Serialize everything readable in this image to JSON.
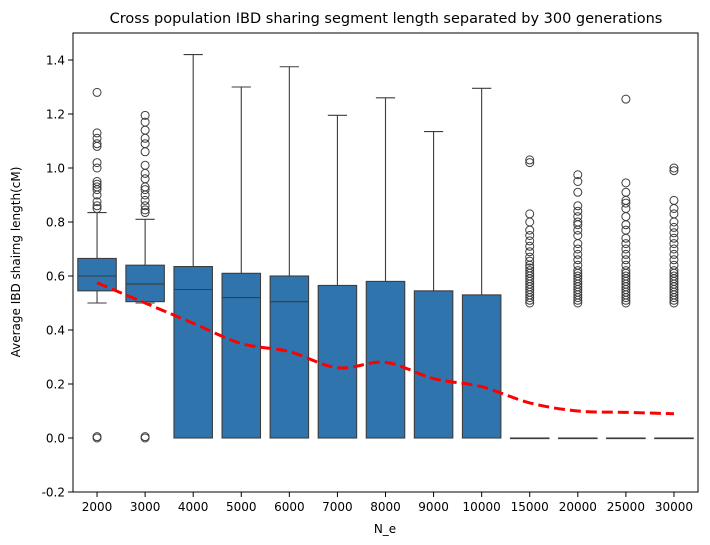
{
  "chart_data": {
    "type": "box",
    "title": "Cross population IBD sharing segment length separated by 300 generations",
    "xlabel": "N_e",
    "ylabel": "Average IBD shairng length(cM)",
    "ylim": [
      -0.2,
      1.5
    ],
    "yticks": [
      -0.2,
      0.0,
      0.2,
      0.4,
      0.6,
      0.8,
      1.0,
      1.2,
      1.4
    ],
    "grid": false,
    "colors": {
      "box": "#2f74ad",
      "edge": "#3d3d3d",
      "trend": "#ff0000"
    },
    "categories": [
      "2000",
      "3000",
      "4000",
      "5000",
      "6000",
      "7000",
      "8000",
      "9000",
      "10000",
      "15000",
      "20000",
      "25000",
      "30000"
    ],
    "boxes": [
      {
        "whislo": 0.5,
        "q1": 0.545,
        "med": 0.6,
        "q3": 0.665,
        "whishi": 0.835,
        "fliers": [
          0.0,
          0.005,
          0.85,
          0.86,
          0.875,
          0.9,
          0.92,
          0.93,
          0.94,
          0.95,
          1.0,
          1.02,
          1.08,
          1.09,
          1.11,
          1.13,
          1.28
        ]
      },
      {
        "whislo": 0.5,
        "q1": 0.505,
        "med": 0.57,
        "q3": 0.64,
        "whishi": 0.81,
        "fliers": [
          0.0,
          0.005,
          0.835,
          0.845,
          0.86,
          0.88,
          0.9,
          0.92,
          0.93,
          0.96,
          0.98,
          1.01,
          1.06,
          1.09,
          1.11,
          1.14,
          1.17,
          1.195
        ]
      },
      {
        "whislo": 0.0,
        "q1": 0.0,
        "med": 0.55,
        "q3": 0.635,
        "whishi": 1.42,
        "fliers": []
      },
      {
        "whislo": 0.0,
        "q1": 0.0,
        "med": 0.52,
        "q3": 0.61,
        "whishi": 1.3,
        "fliers": []
      },
      {
        "whislo": 0.0,
        "q1": 0.0,
        "med": 0.505,
        "q3": 0.6,
        "whishi": 1.375,
        "fliers": []
      },
      {
        "whislo": 0.0,
        "q1": 0.0,
        "med": 0.0,
        "q3": 0.565,
        "whishi": 1.195,
        "fliers": []
      },
      {
        "whislo": 0.0,
        "q1": 0.0,
        "med": 0.0,
        "q3": 0.58,
        "whishi": 1.26,
        "fliers": []
      },
      {
        "whislo": 0.0,
        "q1": 0.0,
        "med": 0.0,
        "q3": 0.545,
        "whishi": 1.135,
        "fliers": []
      },
      {
        "whislo": 0.0,
        "q1": 0.0,
        "med": 0.0,
        "q3": 0.53,
        "whishi": 1.295,
        "fliers": []
      },
      {
        "whislo": 0.0,
        "q1": 0.0,
        "med": 0.0,
        "q3": 0.0,
        "whishi": 0.0,
        "fliers": [
          0.5,
          0.51,
          0.52,
          0.53,
          0.54,
          0.55,
          0.56,
          0.57,
          0.58,
          0.59,
          0.6,
          0.61,
          0.62,
          0.63,
          0.64,
          0.655,
          0.67,
          0.69,
          0.71,
          0.73,
          0.75,
          0.77,
          0.8,
          0.83,
          1.02,
          1.03
        ]
      },
      {
        "whislo": 0.0,
        "q1": 0.0,
        "med": 0.0,
        "q3": 0.0,
        "whishi": 0.0,
        "fliers": [
          0.5,
          0.51,
          0.52,
          0.53,
          0.54,
          0.55,
          0.56,
          0.57,
          0.58,
          0.59,
          0.6,
          0.61,
          0.62,
          0.64,
          0.66,
          0.68,
          0.7,
          0.72,
          0.75,
          0.77,
          0.79,
          0.8,
          0.82,
          0.84,
          0.86,
          0.91,
          0.95,
          0.975
        ]
      },
      {
        "whislo": 0.0,
        "q1": 0.0,
        "med": 0.0,
        "q3": 0.0,
        "whishi": 0.0,
        "fliers": [
          0.5,
          0.51,
          0.52,
          0.53,
          0.54,
          0.55,
          0.56,
          0.57,
          0.58,
          0.59,
          0.6,
          0.61,
          0.62,
          0.64,
          0.66,
          0.68,
          0.7,
          0.72,
          0.74,
          0.77,
          0.79,
          0.82,
          0.85,
          0.87,
          0.88,
          0.91,
          0.945,
          1.255
        ]
      },
      {
        "whislo": 0.0,
        "q1": 0.0,
        "med": 0.0,
        "q3": 0.0,
        "whishi": 0.0,
        "fliers": [
          0.5,
          0.51,
          0.52,
          0.53,
          0.54,
          0.55,
          0.56,
          0.57,
          0.58,
          0.59,
          0.6,
          0.61,
          0.62,
          0.64,
          0.66,
          0.68,
          0.7,
          0.72,
          0.74,
          0.76,
          0.78,
          0.8,
          0.83,
          0.85,
          0.88,
          0.99,
          1.0
        ]
      }
    ],
    "trend_line": {
      "style": "dashed",
      "values": [
        0.575,
        0.5,
        0.425,
        0.35,
        0.32,
        0.26,
        0.28,
        0.22,
        0.19,
        0.13,
        0.1,
        0.095,
        0.09
      ]
    }
  }
}
